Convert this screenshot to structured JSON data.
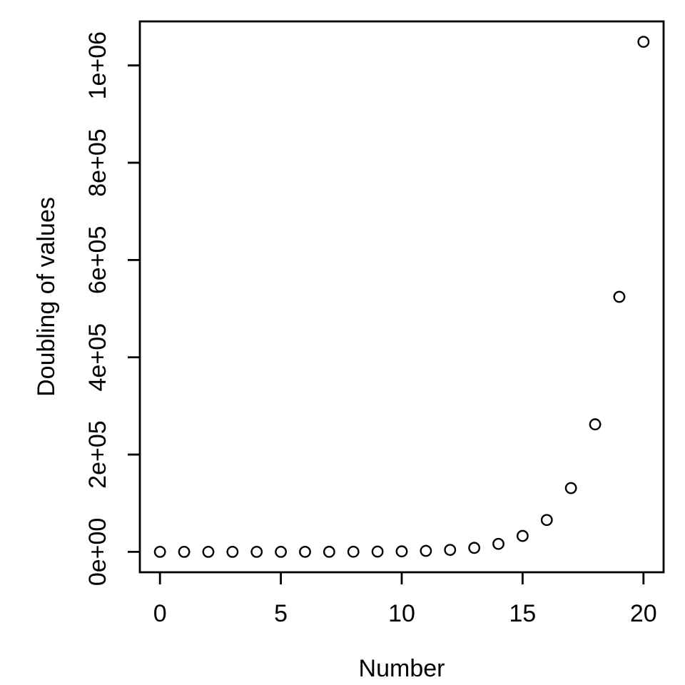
{
  "figure": {
    "background_color": "#ffffff",
    "foreground_color": "#000000"
  },
  "chart_data": {
    "type": "scatter",
    "title": "",
    "xlabel": "Number",
    "ylabel": "Doubling of values",
    "marker": "open-circle",
    "grid": false,
    "legend": null,
    "x": [
      0,
      1,
      2,
      3,
      4,
      5,
      6,
      7,
      8,
      9,
      10,
      11,
      12,
      13,
      14,
      15,
      16,
      17,
      18,
      19,
      20
    ],
    "y": [
      1,
      2,
      4,
      8,
      16,
      32,
      64,
      128,
      256,
      512,
      1024,
      2048,
      4096,
      8192,
      16384,
      32768,
      65536,
      131072,
      262144,
      524288,
      1048576
    ],
    "x_ticks": {
      "values": [
        0,
        5,
        10,
        15,
        20
      ],
      "labels": [
        "0",
        "5",
        "10",
        "15",
        "20"
      ]
    },
    "y_ticks": {
      "values": [
        0,
        200000,
        400000,
        600000,
        800000,
        1000000
      ],
      "labels": [
        "0e+00",
        "2e+05",
        "4e+05",
        "6e+05",
        "8e+05",
        "1e+06"
      ]
    },
    "xlim": [
      -0.832,
      20.832
    ],
    "ylim": [
      -41943,
      1090519
    ]
  }
}
